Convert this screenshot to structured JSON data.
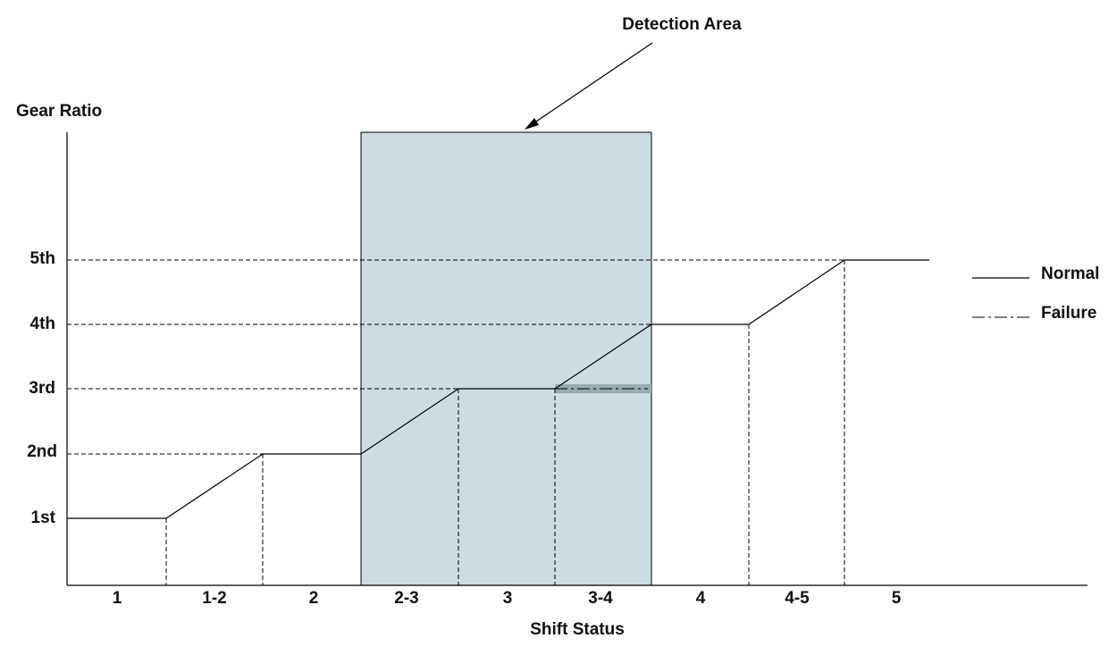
{
  "title": "Detection Area",
  "y_axis": {
    "label": "Gear Ratio",
    "ticks": [
      "1st",
      "2nd",
      "3rd",
      "4th",
      "5th"
    ]
  },
  "x_axis": {
    "label": "Shift Status",
    "ticks": [
      "1",
      "1-2",
      "2",
      "2-3",
      "3",
      "3-4",
      "4",
      "4-5",
      "5"
    ]
  },
  "legend": [
    {
      "label": "Normal"
    },
    {
      "label": "Failure"
    }
  ]
}
